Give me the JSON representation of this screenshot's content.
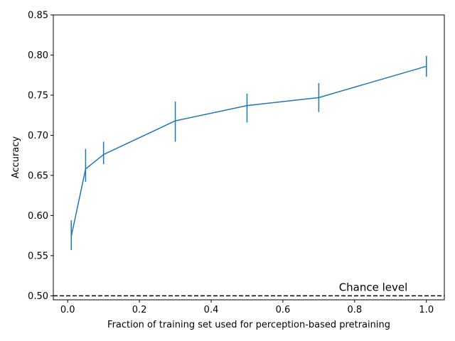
{
  "chart_data": {
    "type": "line",
    "title": "",
    "xlabel": "Fraction of training set used for perception-based pretraining",
    "ylabel": "Accuracy",
    "xlim": [
      -0.04,
      1.05
    ],
    "ylim": [
      0.495,
      0.85
    ],
    "x_ticks": [
      "0.0",
      "0.2",
      "0.4",
      "0.6",
      "0.8",
      "1.0"
    ],
    "y_ticks": [
      "0.50",
      "0.55",
      "0.60",
      "0.65",
      "0.70",
      "0.75",
      "0.80",
      "0.85"
    ],
    "grid": false,
    "series": [
      {
        "color": "#1f77b4",
        "x": [
          0.01,
          0.05,
          0.1,
          0.3,
          0.5,
          0.7,
          1.0
        ],
        "y": [
          0.574,
          0.658,
          0.676,
          0.718,
          0.737,
          0.747,
          0.786
        ],
        "error_low": [
          0.557,
          0.642,
          0.664,
          0.692,
          0.716,
          0.729,
          0.773
        ],
        "error_high": [
          0.594,
          0.683,
          0.692,
          0.742,
          0.752,
          0.765,
          0.799
        ]
      }
    ],
    "reference_line": {
      "y": 0.5,
      "style": "dashed",
      "color": "#000000",
      "label": "Chance level"
    }
  }
}
